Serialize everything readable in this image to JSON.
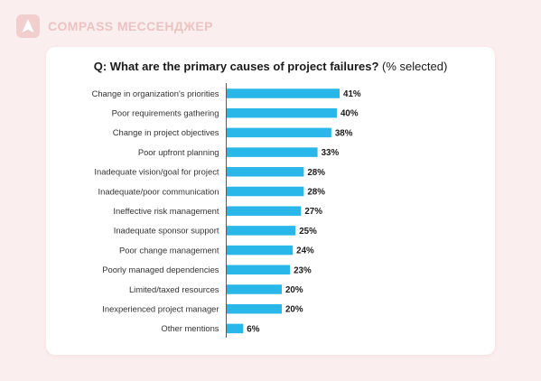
{
  "brand": {
    "name": "COMPASS МЕССЕНДЖЕР",
    "logo_icon": "compass-a-icon",
    "color": "#ebc3c3"
  },
  "chart_data": {
    "type": "bar",
    "orientation": "horizontal",
    "title_question": "Q: What are the primary causes of project failures?",
    "title_suffix": "(% selected)",
    "categories": [
      "Change in organization's priorities",
      "Poor requirements gathering",
      "Change in project objectives",
      "Poor upfront planning",
      "Inadequate vision/goal for project",
      "Inadequate/poor communication",
      "Ineffective risk management",
      "Inadequate sponsor support",
      "Poor change management",
      "Poorly managed dependencies",
      "Limited/taxed resources",
      "Inexperienced project manager",
      "Other mentions"
    ],
    "values": [
      41,
      40,
      38,
      33,
      28,
      28,
      27,
      25,
      24,
      23,
      20,
      20,
      6
    ],
    "value_labels": [
      "41%",
      "40%",
      "38%",
      "33%",
      "28%",
      "28%",
      "27%",
      "25%",
      "24%",
      "23%",
      "20%",
      "20%",
      "6%"
    ],
    "unit": "%",
    "xlim": [
      0,
      41
    ],
    "bar_color": "#29b6e8",
    "grid": false,
    "legend": "none"
  }
}
